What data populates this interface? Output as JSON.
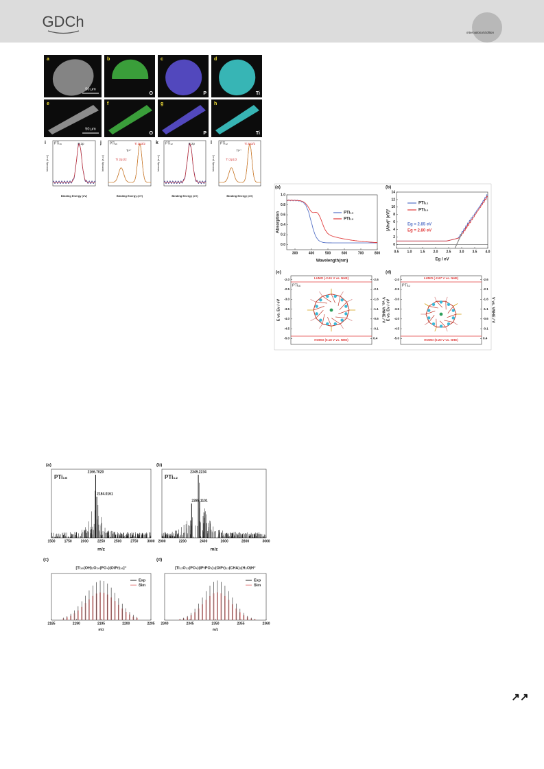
{
  "header": {
    "logo": "GDCh",
    "edition": "International Edition"
  },
  "figure1": {
    "panels": [
      {
        "letter": "a",
        "scale_bar": "50 μm"
      },
      {
        "letter": "b",
        "element": "O"
      },
      {
        "letter": "c",
        "element": "P"
      },
      {
        "letter": "d",
        "element": "Ti"
      },
      {
        "letter": "e",
        "scale_bar": "50 μm"
      },
      {
        "letter": "f",
        "element": "O"
      },
      {
        "letter": "g",
        "element": "P"
      },
      {
        "letter": "h",
        "element": "Ti"
      }
    ],
    "xps": [
      {
        "letter": "i",
        "sample": "PTi₁₆",
        "peaks": [
          "P 2p"
        ]
      },
      {
        "letter": "j",
        "sample": "PTi₁₆",
        "peaks": [
          "Ti 2p3/2",
          "Ti 2p1/2",
          "Ti⁴⁺"
        ]
      },
      {
        "letter": "k",
        "sample": "PTi₁₂",
        "peaks": [
          "P 2p"
        ]
      },
      {
        "letter": "l",
        "sample": "PTi₁₂",
        "peaks": [
          "Ti 2p3/2",
          "Ti 2p1/2",
          "Ti⁴⁺"
        ]
      }
    ],
    "xps_xlabel": "Binding Energy (eV)",
    "xps_ylabel": "Intensity (a.u.)"
  },
  "figure2": {
    "absorption": {
      "letter": "(a)",
      "xlabel": "Wavelength(nm)",
      "ylabel": "Absorption",
      "xlim": [
        250,
        800
      ],
      "ylim": [
        -0.1,
        1.0
      ],
      "xticks": [
        300,
        400,
        500,
        600,
        700,
        800
      ],
      "yticks": [
        {
          "value": 0,
          "label": "0.0"
        },
        0.2,
        0.4,
        0.6,
        0.8,
        {
          "value": 1,
          "label": "1.0"
        }
      ],
      "legend": [
        {
          "name": "PTi₁₂",
          "color": "#5470c6"
        },
        {
          "name": "PTi₁₆",
          "color": "#e03a3a"
        }
      ]
    },
    "tauc": {
      "letter": "(b)",
      "xlabel": "Eg / eV",
      "ylabel": "(Ahν)² (eV)²",
      "xlim": [
        0.5,
        4.0
      ],
      "ylim": [
        -1,
        14
      ],
      "xticks": [
        0.5,
        {
          "value": 1,
          "label": "1.0"
        },
        1.5,
        {
          "value": 2,
          "label": "2.0"
        },
        2.5,
        {
          "value": 3,
          "label": "3.0"
        },
        3.5,
        {
          "value": 4,
          "label": "4.0"
        }
      ],
      "yticks": [
        0,
        2,
        4,
        6,
        8,
        10,
        12,
        14
      ],
      "legend": [
        {
          "name": "PTi₁₂",
          "color": "#5470c6"
        },
        {
          "name": "PTi₁₆",
          "color": "#e03a3a"
        }
      ],
      "band_gaps": [
        "Eg = 2.85 eV",
        "Eg = 2.80 eV"
      ]
    },
    "levels": [
      {
        "letter": "(c)",
        "sample": "PTi₁₆",
        "lumo": "LUMO (-2.61 V vs. NHE)",
        "homo": "HOMO (0.18 V vs. NHE)",
        "ylabel": "E vs. Ev / eV",
        "y2label": "V vs. VNHE / V",
        "ylim": [
          -5.3,
          -1.8
        ],
        "y2lim": [
          0.7,
          -2.8
        ],
        "yticks": [
          {
            "value": -2,
            "label": "-2.0"
          },
          -2.5,
          {
            "value": -3,
            "label": "-3.0"
          },
          -3.5,
          {
            "value": -4,
            "label": "-4.0"
          },
          -4.5,
          {
            "value": -5,
            "label": "-5.0"
          }
        ],
        "y2ticks": [
          -2.6,
          -2.1,
          -1.6,
          -1.1,
          -0.6,
          -0.1,
          0.4
        ]
      },
      {
        "letter": "(d)",
        "sample": "PTi₁₂",
        "lumo": "LUMO (-2.67 V vs. NHE)",
        "homo": "HOMO (0.20 V vs. NHE)",
        "ylabel": "E vs. Ev / eV",
        "y2label": "V vs. VNHE / V",
        "ylim": [
          -5.3,
          -1.8
        ],
        "y2lim": [
          0.7,
          -2.8
        ],
        "yticks": [
          {
            "value": -2,
            "label": "-2.0"
          },
          -2.5,
          {
            "value": -3,
            "label": "-3.0"
          },
          -3.5,
          {
            "value": -4,
            "label": "-4.0"
          },
          -4.5,
          {
            "value": -5,
            "label": "-5.0"
          }
        ],
        "y2ticks": [
          -2.6,
          -2.1,
          -1.6,
          -1.1,
          -0.6,
          -0.1,
          0.4
        ]
      }
    ]
  },
  "figure3": {
    "spectra": [
      {
        "letter": "(a)",
        "sample": "PTi₁₆",
        "peaks": [
          "2166.7020",
          "2184.0161"
        ],
        "xlabel": "m/z",
        "xlim": [
          1500,
          3000
        ],
        "xticks": [
          1500,
          1750,
          2000,
          2250,
          2500,
          2750,
          3000
        ]
      },
      {
        "letter": "(b)",
        "sample": "PTi₁₂",
        "peaks": [
          "2349.2234",
          "2285.1101"
        ],
        "xlabel": "m/z",
        "xlim": [
          2000,
          3000
        ],
        "xticks": [
          2000,
          2200,
          2400,
          2600,
          2800,
          3000
        ]
      }
    ],
    "isotopes": [
      {
        "letter": "(c)",
        "formula": "[Ti₁₆(OH)₂O₂₀(PO₄)(OiPr)₁₆]⁺",
        "legend": [
          "Exp",
          "Sim"
        ],
        "xlabel": "m/z",
        "xlim": [
          2185,
          2205
        ],
        "xticks": [
          2185,
          2190,
          2195,
          2200,
          2205
        ]
      },
      {
        "letter": "(d)",
        "formula": "[Ti₁₂O₁₂(PO₄)(iPrPO₃)₃(OiPr)₁₂(CHA)₂(H₂O)H⁺",
        "legend": [
          "Exp",
          "Sim"
        ],
        "xlabel": "m/z",
        "xlim": [
          2340,
          2360
        ],
        "xticks": [
          2340,
          2345,
          2350,
          2355,
          2360
        ]
      }
    ]
  },
  "footer": {
    "arrow": "↗↗"
  }
}
